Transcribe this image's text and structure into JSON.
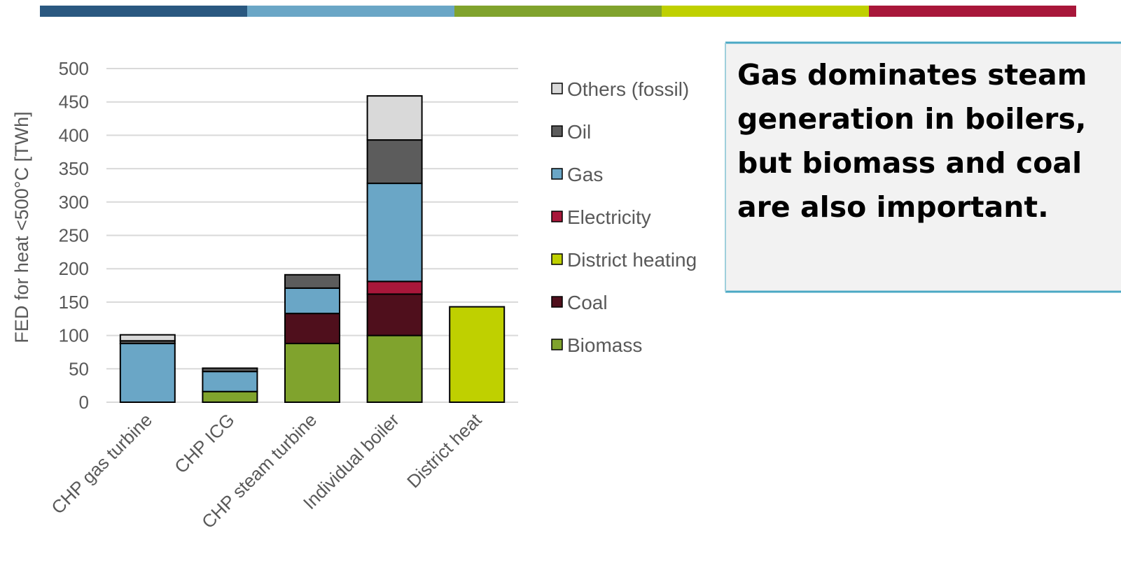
{
  "chart_data": {
    "type": "bar",
    "stacked": true,
    "y_label": "FED for heat <500°C [TWh]",
    "categories": [
      "CHP gas turbine",
      "CHP ICG",
      "CHP steam turbine",
      "Individual boiler",
      "District heat"
    ],
    "series": [
      {
        "name": "Biomass",
        "color": "#80a32d",
        "values": [
          0,
          16,
          88,
          100,
          0
        ]
      },
      {
        "name": "Coal",
        "color": "#4f0f1c",
        "values": [
          0,
          0,
          45,
          62,
          0
        ]
      },
      {
        "name": "District heating",
        "color": "#bfd000",
        "values": [
          0,
          0,
          0,
          0,
          143
        ]
      },
      {
        "name": "Electricity",
        "color": "#a8173a",
        "values": [
          0,
          0,
          0,
          19,
          0
        ]
      },
      {
        "name": "Gas",
        "color": "#6aa6c6",
        "values": [
          88,
          30,
          38,
          147,
          0
        ]
      },
      {
        "name": "Oil",
        "color": "#5c5c5c",
        "values": [
          4,
          5,
          20,
          65,
          0
        ]
      },
      {
        "name": "Others (fossil)",
        "color": "#d9d9d9",
        "values": [
          9,
          0,
          0,
          66,
          0
        ]
      }
    ],
    "ylim": [
      0,
      500
    ],
    "yticks": [
      0,
      50,
      100,
      150,
      200,
      250,
      300,
      350,
      400,
      450,
      500
    ],
    "grid": true
  },
  "callout": {
    "lines": [
      "Gas dominates steam",
      "generation in boilers,",
      "but biomass and coal",
      "are also  important."
    ]
  }
}
